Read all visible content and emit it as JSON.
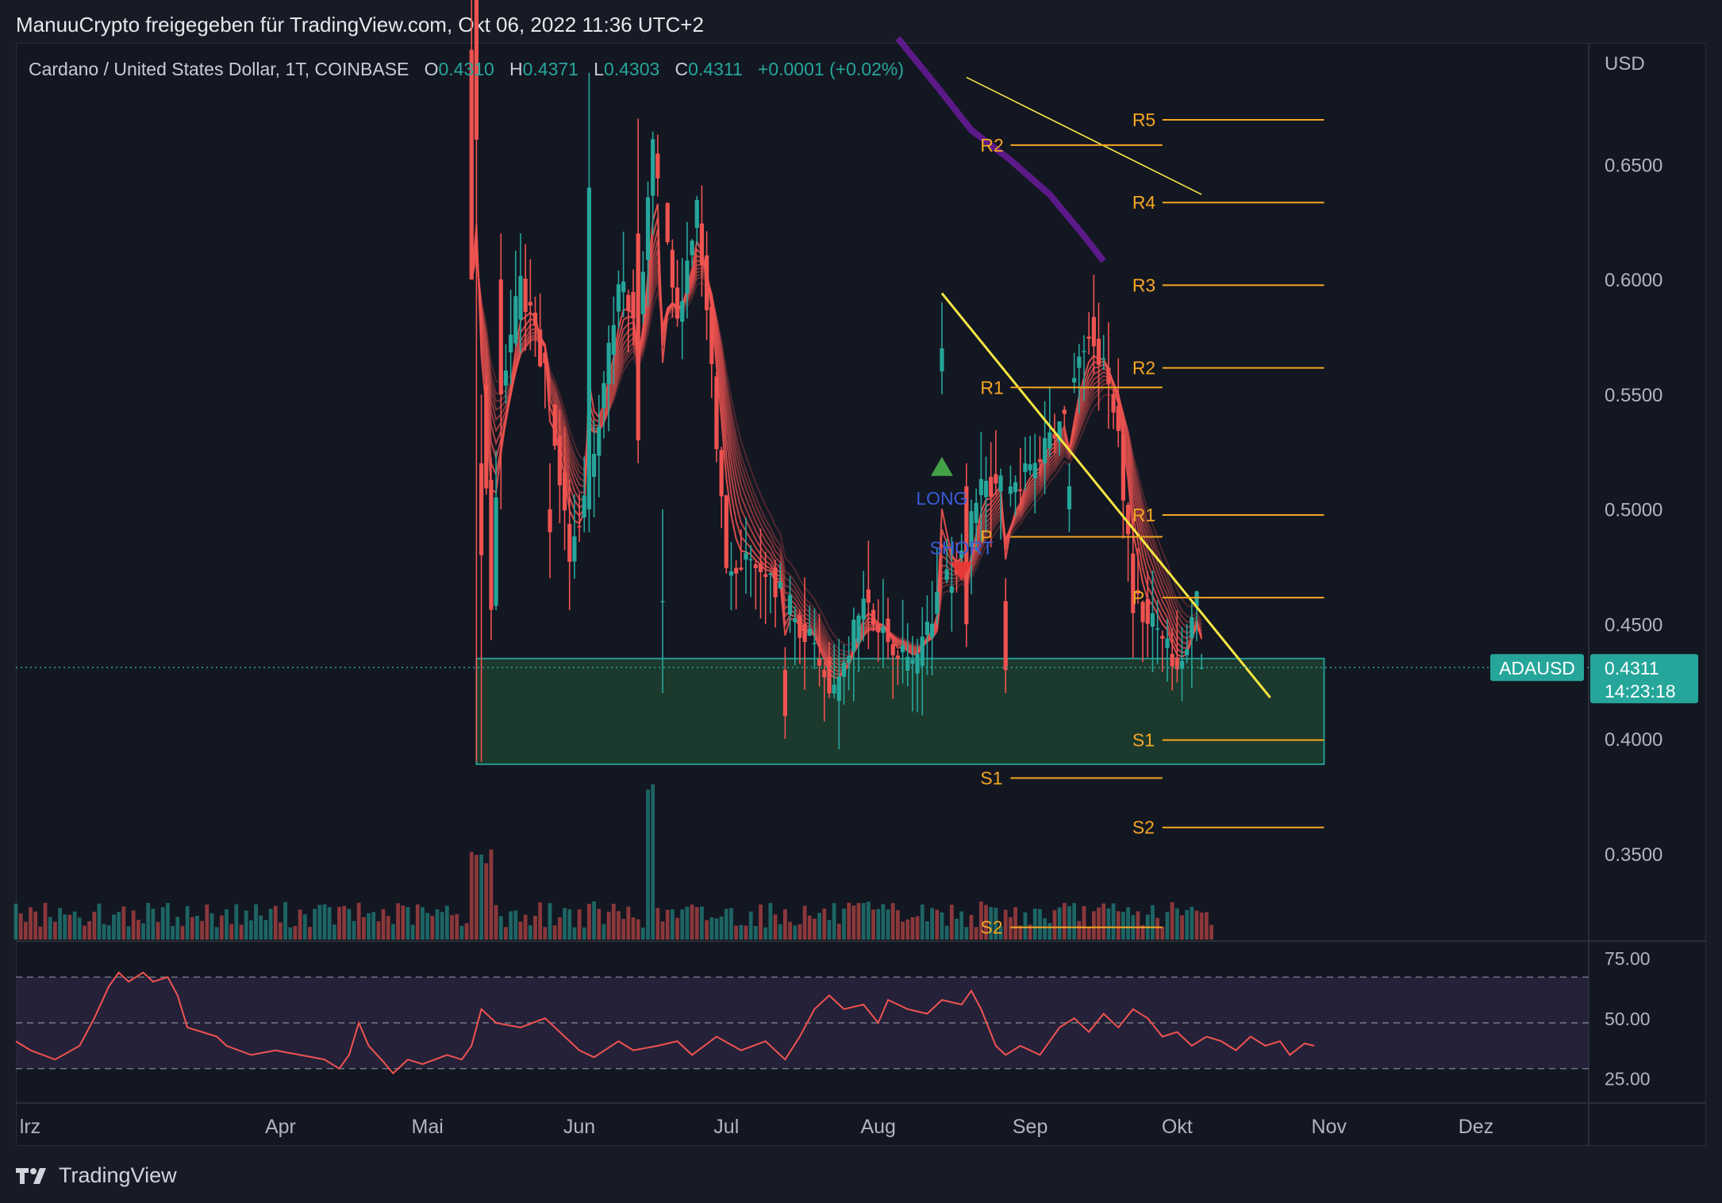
{
  "share_text": "ManuuCrypto freigegeben für TradingView.com, Okt 06, 2022 11:36 UTC+2",
  "legend": {
    "symbol": "Cardano / United States Dollar, 1T, COINBASE",
    "o_label": "O",
    "o": "0.4310",
    "h_label": "H",
    "h": "0.4371",
    "l_label": "L",
    "l": "0.4303",
    "c_label": "C",
    "c": "0.4311",
    "change": "+0.0001 (+0.02%)"
  },
  "footer": {
    "brand": "TradingView"
  },
  "colors": {
    "up": "#26a69a",
    "down": "#ef5350",
    "bg": "#131722",
    "trendline": "#f5e642",
    "pivot": "#f5a623",
    "rsi": "#ef5350",
    "rsi_band": "#2a2440",
    "zone": "#1e3d2f",
    "zone_border": "#26a69a",
    "ribbon_slow": "#6a1b9a",
    "long": "#43a047",
    "short": "#e53935",
    "signal_text": "#3a5bd9"
  },
  "chart_data": {
    "type": "candlestick",
    "symbol": "ADAUSD",
    "price_axis": {
      "label": "USD",
      "ticks": [
        "0.6500",
        "0.6000",
        "0.5500",
        "0.5000",
        "0.4500",
        "0.4000",
        "0.3500"
      ],
      "ylim": [
        0.312,
        0.703
      ]
    },
    "time_axis": {
      "ticks": [
        "Mrz",
        "Apr",
        "Mai",
        "Jun",
        "Jul",
        "Aug",
        "Sep",
        "Okt",
        "Nov",
        "Dez"
      ],
      "visible_ticks": [
        "lrz",
        "Apr",
        "Mai",
        "Jun",
        "Jul",
        "Aug",
        "Sep",
        "Okt",
        "Nov",
        "Dez"
      ],
      "day_range": [
        -23,
        298
      ]
    },
    "last_price": {
      "symbol_tag": "ADAUSD",
      "price": "0.4311",
      "countdown": "14:23:18"
    },
    "candles_ohlc_approx": [
      {
        "date": "2022-05-10",
        "o": 0.7,
        "h": 0.75,
        "l": 0.6,
        "c": 0.6
      },
      {
        "date": "2022-05-12",
        "o": 0.52,
        "h": 0.55,
        "l": 0.39,
        "c": 0.48
      },
      {
        "date": "2022-05-16",
        "o": 0.6,
        "h": 0.62,
        "l": 0.5,
        "c": 0.55
      },
      {
        "date": "2022-05-26",
        "o": 0.5,
        "h": 0.52,
        "l": 0.47,
        "c": 0.49
      },
      {
        "date": "2022-06-03",
        "o": 0.5,
        "h": 0.69,
        "l": 0.49,
        "c": 0.64
      },
      {
        "date": "2022-06-13",
        "o": 0.62,
        "h": 0.67,
        "l": 0.52,
        "c": 0.53
      },
      {
        "date": "2022-06-18",
        "o": 0.46,
        "h": 0.5,
        "l": 0.42,
        "c": 0.46
      },
      {
        "date": "2022-07-13",
        "o": 0.43,
        "h": 0.44,
        "l": 0.4,
        "c": 0.41
      },
      {
        "date": "2022-08-14",
        "o": 0.56,
        "h": 0.59,
        "l": 0.55,
        "c": 0.57
      },
      {
        "date": "2022-08-19",
        "o": 0.51,
        "h": 0.52,
        "l": 0.44,
        "c": 0.45
      },
      {
        "date": "2022-08-27",
        "o": 0.46,
        "h": 0.47,
        "l": 0.42,
        "c": 0.43
      },
      {
        "date": "2022-09-09",
        "o": 0.5,
        "h": 0.52,
        "l": 0.49,
        "c": 0.51
      },
      {
        "date": "2022-10-06",
        "o": 0.431,
        "h": 0.4371,
        "l": 0.4303,
        "c": 0.4311
      }
    ],
    "trendlines": [
      {
        "from": {
          "date": "2022-08-14",
          "price": 0.594
        },
        "to": {
          "date": "2022-10-20",
          "price": 0.418
        }
      },
      {
        "from": {
          "date": "2022-08-19",
          "price": 0.688
        },
        "to": {
          "date": "2022-10-06",
          "price": 0.637
        }
      }
    ],
    "support_zone": {
      "from": "2022-05-11",
      "to": "2022-10-31",
      "top": 0.435,
      "bottom": 0.389
    },
    "pivot_sets": [
      {
        "x_from": "2022-08-28",
        "x_to": "2022-09-28",
        "levels": [
          {
            "label": "R2",
            "price": 0.6585
          },
          {
            "label": "R1",
            "price": 0.553
          },
          {
            "label": "P",
            "price": 0.488
          },
          {
            "label": "S1",
            "price": 0.383
          },
          {
            "label": "S2",
            "price": 0.318
          }
        ]
      },
      {
        "x_from": "2022-09-28",
        "x_to": "2022-10-31",
        "levels": [
          {
            "label": "R5",
            "price": 0.6695
          },
          {
            "label": "R4",
            "price": 0.6335
          },
          {
            "label": "R3",
            "price": 0.5975
          },
          {
            "label": "R2",
            "price": 0.5615
          },
          {
            "label": "R1",
            "price": 0.4975
          },
          {
            "label": "P",
            "price": 0.4615
          },
          {
            "label": "S1",
            "price": 0.3995
          },
          {
            "label": "S2",
            "price": 0.3615
          }
        ]
      }
    ],
    "signals": [
      {
        "type": "LONG",
        "text": "LONG",
        "date": "2022-08-14",
        "price": 0.52
      },
      {
        "type": "SHORT",
        "text": "SHORT",
        "date": "2022-08-18",
        "price": 0.477
      }
    ],
    "rsi": {
      "ticks": [
        "75.00",
        "50.00",
        "25.00"
      ],
      "band": [
        30,
        70
      ],
      "ylim": [
        15,
        85
      ],
      "points": [
        [
          -23,
          42
        ],
        [
          -20,
          38
        ],
        [
          -15,
          34
        ],
        [
          -10,
          40
        ],
        [
          -7,
          52
        ],
        [
          -4,
          66
        ],
        [
          -2,
          72
        ],
        [
          0,
          68
        ],
        [
          3,
          72
        ],
        [
          5,
          68
        ],
        [
          8,
          70
        ],
        [
          10,
          62
        ],
        [
          12,
          48
        ],
        [
          15,
          46
        ],
        [
          18,
          44
        ],
        [
          20,
          40
        ],
        [
          25,
          36
        ],
        [
          30,
          38
        ],
        [
          35,
          36
        ],
        [
          40,
          34
        ],
        [
          43,
          30
        ],
        [
          45,
          36
        ],
        [
          47,
          50
        ],
        [
          49,
          40
        ],
        [
          52,
          33
        ],
        [
          54,
          28
        ],
        [
          57,
          34
        ],
        [
          60,
          32
        ],
        [
          65,
          36
        ],
        [
          68,
          34
        ],
        [
          70,
          40
        ],
        [
          72,
          56
        ],
        [
          75,
          50
        ],
        [
          80,
          48
        ],
        [
          85,
          52
        ],
        [
          88,
          46
        ],
        [
          92,
          38
        ],
        [
          95,
          35
        ],
        [
          100,
          42
        ],
        [
          103,
          38
        ],
        [
          108,
          40
        ],
        [
          112,
          42
        ],
        [
          115,
          36
        ],
        [
          120,
          44
        ],
        [
          125,
          38
        ],
        [
          130,
          42
        ],
        [
          134,
          34
        ],
        [
          137,
          44
        ],
        [
          140,
          56
        ],
        [
          143,
          62
        ],
        [
          146,
          56
        ],
        [
          150,
          58
        ],
        [
          153,
          50
        ],
        [
          155,
          60
        ],
        [
          159,
          56
        ],
        [
          163,
          54
        ],
        [
          166,
          60
        ],
        [
          170,
          58
        ],
        [
          172,
          64
        ],
        [
          174,
          56
        ],
        [
          177,
          40
        ],
        [
          179,
          36
        ],
        [
          182,
          40
        ],
        [
          186,
          36
        ],
        [
          190,
          48
        ],
        [
          193,
          52
        ],
        [
          196,
          46
        ],
        [
          199,
          54
        ],
        [
          202,
          48
        ],
        [
          205,
          56
        ],
        [
          208,
          52
        ],
        [
          211,
          44
        ],
        [
          214,
          46
        ],
        [
          217,
          40
        ],
        [
          220,
          44
        ],
        [
          223,
          42
        ],
        [
          226,
          38
        ],
        [
          229,
          44
        ],
        [
          232,
          40
        ],
        [
          235,
          42
        ],
        [
          237,
          36
        ],
        [
          240,
          41
        ],
        [
          242,
          40
        ]
      ]
    },
    "visible_range_note": "lrz"
  }
}
